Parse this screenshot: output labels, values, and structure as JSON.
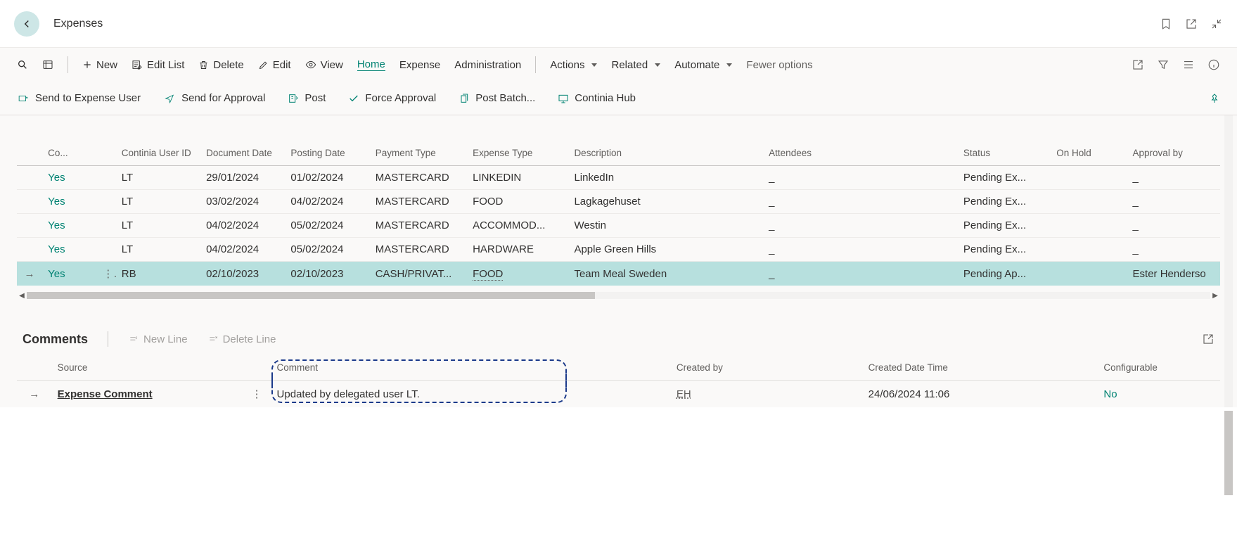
{
  "page": {
    "title": "Expenses"
  },
  "toolbar": {
    "new": "New",
    "editList": "Edit List",
    "delete": "Delete",
    "edit": "Edit",
    "view": "View",
    "home": "Home",
    "expense": "Expense",
    "admin": "Administration",
    "actions": "Actions",
    "related": "Related",
    "automate": "Automate",
    "fewer": "Fewer options"
  },
  "subbar": {
    "sendUser": "Send to Expense User",
    "sendApproval": "Send for Approval",
    "post": "Post",
    "force": "Force Approval",
    "postBatch": "Post Batch...",
    "hub": "Continia Hub"
  },
  "columns": {
    "co": "Co...",
    "userId": "Continia User ID",
    "docDate": "Document Date",
    "postDate": "Posting Date",
    "payType": "Payment Type",
    "expType": "Expense Type",
    "desc": "Description",
    "attendees": "Attendees",
    "status": "Status",
    "onHold": "On Hold",
    "approvalBy": "Approval by"
  },
  "rows": [
    {
      "co": "Yes",
      "user": "LT",
      "doc": "29/01/2024",
      "post": "01/02/2024",
      "pay": "MASTERCARD",
      "exp": "LINKEDIN",
      "desc": "LinkedIn",
      "att": "_",
      "status": "Pending Ex...",
      "hold": "",
      "appr": "_"
    },
    {
      "co": "Yes",
      "user": "LT",
      "doc": "03/02/2024",
      "post": "04/02/2024",
      "pay": "MASTERCARD",
      "exp": "FOOD",
      "desc": "Lagkagehuset",
      "att": "_",
      "status": "Pending Ex...",
      "hold": "",
      "appr": "_"
    },
    {
      "co": "Yes",
      "user": "LT",
      "doc": "04/02/2024",
      "post": "05/02/2024",
      "pay": "MASTERCARD",
      "exp": "ACCOMMOD...",
      "desc": "Westin",
      "att": "_",
      "status": "Pending Ex...",
      "hold": "",
      "appr": "_"
    },
    {
      "co": "Yes",
      "user": "LT",
      "doc": "04/02/2024",
      "post": "05/02/2024",
      "pay": "MASTERCARD",
      "exp": "HARDWARE",
      "desc": "Apple Green Hills",
      "att": "_",
      "status": "Pending Ex...",
      "hold": "",
      "appr": "_"
    },
    {
      "co": "Yes",
      "user": "RB",
      "doc": "02/10/2023",
      "post": "02/10/2023",
      "pay": "CASH/PRIVAT...",
      "exp": "FOOD",
      "desc": "Team Meal Sweden",
      "att": "_",
      "status": "Pending Ap...",
      "hold": "",
      "appr": "Ester Henderso",
      "sel": true
    }
  ],
  "comments": {
    "title": "Comments",
    "newLine": "New Line",
    "deleteLine": "Delete Line",
    "cols": {
      "source": "Source",
      "comment": "Comment",
      "createdBy": "Created by",
      "createdDt": "Created Date Time",
      "configurable": "Configurable"
    },
    "row": {
      "source": "Expense Comment",
      "comment": "Updated by delegated user LT.",
      "by": "EH",
      "dt": "24/06/2024 11:06",
      "cfg": "No"
    }
  }
}
